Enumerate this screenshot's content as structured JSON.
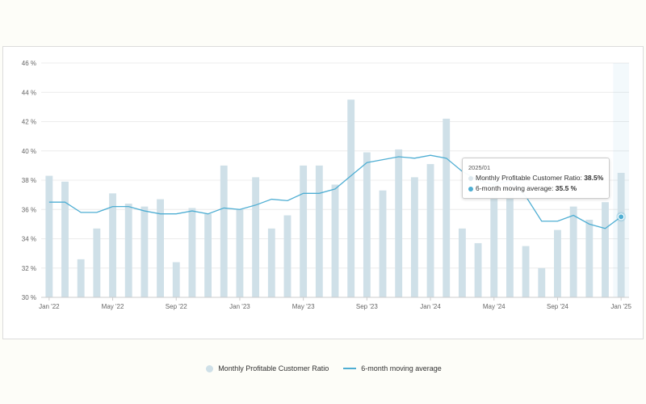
{
  "chart_data": {
    "type": "bar",
    "categories": [
      "2022/01",
      "2022/02",
      "2022/03",
      "2022/04",
      "2022/05",
      "2022/06",
      "2022/07",
      "2022/08",
      "2022/09",
      "2022/10",
      "2022/11",
      "2022/12",
      "2023/01",
      "2023/02",
      "2023/03",
      "2023/04",
      "2023/05",
      "2023/06",
      "2023/07",
      "2023/08",
      "2023/09",
      "2023/10",
      "2023/11",
      "2023/12",
      "2024/01",
      "2024/02",
      "2024/03",
      "2024/04",
      "2024/05",
      "2024/06",
      "2024/07",
      "2024/08",
      "2024/09",
      "2024/10",
      "2024/11",
      "2024/12",
      "2025/01"
    ],
    "x_tick_labels": [
      "Jan '22",
      "May '22",
      "Sep '22",
      "Jan '23",
      "May '23",
      "Sep '23",
      "Jan '24",
      "May '24",
      "Sep '24",
      "Jan '25"
    ],
    "x_tick_indices": [
      0,
      4,
      8,
      12,
      16,
      20,
      24,
      28,
      32,
      36
    ],
    "y_tick_labels": [
      "30 %",
      "32 %",
      "34 %",
      "36 %",
      "38 %",
      "40 %",
      "42 %",
      "44 %",
      "46 %"
    ],
    "ylim": [
      30,
      46
    ],
    "grid": true,
    "legend_position": "bottom-center",
    "series": [
      {
        "name": "Monthly Profitable Customer Ratio",
        "type": "bar",
        "color": "#cfe0e8",
        "values": [
          38.3,
          37.9,
          32.6,
          34.7,
          37.1,
          36.4,
          36.2,
          36.7,
          32.4,
          36.1,
          35.7,
          39.0,
          36.0,
          38.2,
          34.7,
          35.6,
          39.0,
          39.0,
          37.7,
          43.5,
          39.9,
          37.3,
          40.1,
          38.2,
          39.1,
          42.2,
          34.7,
          33.7,
          38.0,
          37.5,
          33.5,
          32.0,
          34.6,
          36.2,
          35.3,
          36.5,
          38.5
        ]
      },
      {
        "name": "6-month moving average",
        "type": "line",
        "color": "#4faed3",
        "values": [
          36.5,
          36.5,
          35.8,
          35.8,
          36.2,
          36.2,
          35.9,
          35.7,
          35.7,
          35.9,
          35.7,
          36.1,
          36.0,
          36.3,
          36.7,
          36.6,
          37.1,
          37.1,
          37.4,
          38.3,
          39.2,
          39.4,
          39.6,
          39.5,
          39.7,
          39.5,
          38.6,
          38.0,
          37.7,
          38.0,
          36.9,
          35.2,
          35.2,
          35.6,
          35.0,
          34.7,
          35.5
        ]
      }
    ]
  },
  "legend": {
    "bar_label": "Monthly Profitable Customer Ratio",
    "line_label": "6-month moving average"
  },
  "tooltip": {
    "date": "2025/01",
    "bar_label": "Monthly Profitable Customer Ratio:",
    "bar_value": "38.5%",
    "line_label": "6-month moving average:",
    "line_value": "35.5 %"
  }
}
